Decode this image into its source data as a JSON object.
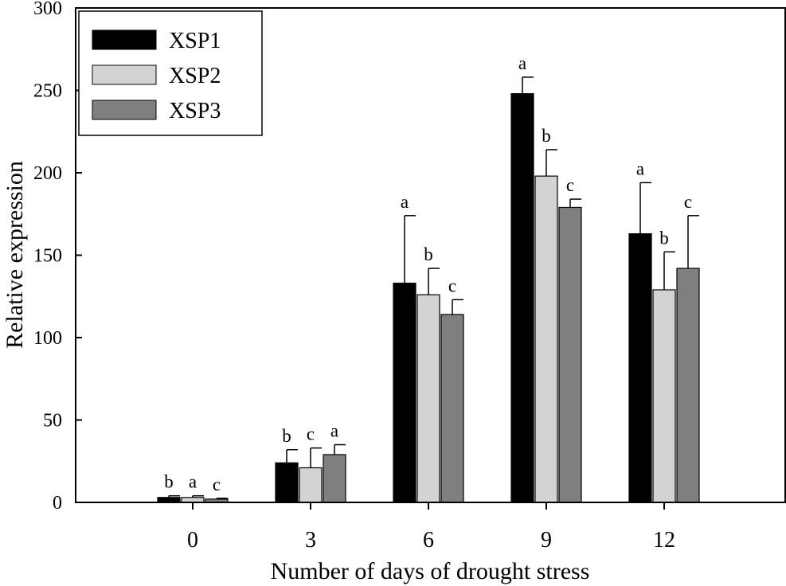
{
  "chart_data": {
    "type": "bar",
    "title": "",
    "xlabel": "Number of days of drought stress",
    "ylabel": "Relative expression",
    "ylim": [
      0,
      300
    ],
    "yticks": [
      0,
      50,
      100,
      150,
      200,
      250,
      300
    ],
    "categories": [
      "0",
      "3",
      "6",
      "9",
      "12"
    ],
    "grid": false,
    "legend_position": "top-left",
    "series": [
      {
        "name": "XSP1",
        "color": "#000000",
        "values": [
          3,
          24,
          133,
          248,
          163
        ],
        "errors": [
          1,
          8,
          41,
          10,
          31
        ],
        "letters": [
          "b",
          "b",
          "a",
          "a",
          "a"
        ]
      },
      {
        "name": "XSP2",
        "color": "#d3d3d3",
        "values": [
          3,
          21,
          126,
          198,
          129
        ],
        "errors": [
          1,
          12,
          16,
          16,
          23
        ],
        "letters": [
          "a",
          "c",
          "b",
          "b",
          "b"
        ]
      },
      {
        "name": "XSP3",
        "color": "#7f7f7f",
        "values": [
          2,
          29,
          114,
          179,
          142
        ],
        "errors": [
          0.5,
          6,
          9,
          5,
          32
        ],
        "letters": [
          "c",
          "a",
          "c",
          "c",
          "c"
        ]
      }
    ]
  }
}
